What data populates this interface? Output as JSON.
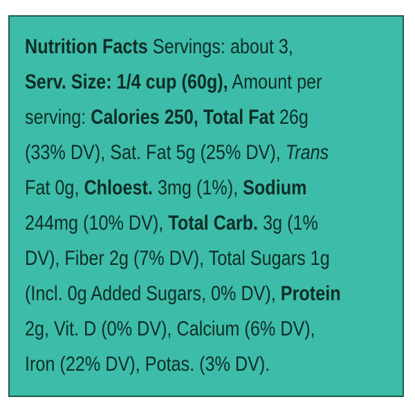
{
  "label": {
    "lines": [
      [
        {
          "text": "Nutrition Facts",
          "style": "bold"
        },
        {
          "text": " Servings: about 3,",
          "style": "normal"
        }
      ],
      [
        {
          "text": "Serv. Size: 1/4 cup (60g),",
          "style": "bold"
        },
        {
          "text": " Amount per",
          "style": "normal"
        }
      ],
      [
        {
          "text": "serving: ",
          "style": "normal"
        },
        {
          "text": "Calories 250, Total Fat",
          "style": "bold"
        },
        {
          "text": " 26g",
          "style": "normal"
        }
      ],
      [
        {
          "text": "(33% DV), Sat. Fat 5g (25% DV), ",
          "style": "normal"
        },
        {
          "text": "Trans",
          "style": "italic"
        }
      ],
      [
        {
          "text": "Fat 0g, ",
          "style": "normal"
        },
        {
          "text": "Chloest.",
          "style": "bold"
        },
        {
          "text": " 3mg (1%), ",
          "style": "normal"
        },
        {
          "text": "Sodium",
          "style": "bold"
        }
      ],
      [
        {
          "text": "244mg (10% DV), ",
          "style": "normal"
        },
        {
          "text": "Total Carb.",
          "style": "bold"
        },
        {
          "text": " 3g (1%",
          "style": "normal"
        }
      ],
      [
        {
          "text": "DV), Fiber 2g (7% DV), Total Sugars 1g",
          "style": "normal"
        }
      ],
      [
        {
          "text": "(Incl. 0g Added Sugars, 0% DV), ",
          "style": "normal"
        },
        {
          "text": "Protein",
          "style": "bold"
        }
      ],
      [
        {
          "text": "2g, Vit. D (0% DV), Calcium (6% DV),",
          "style": "normal"
        }
      ],
      [
        {
          "text": "Iron (22% DV), Potas. (3% DV).",
          "style": "normal"
        }
      ]
    ]
  }
}
